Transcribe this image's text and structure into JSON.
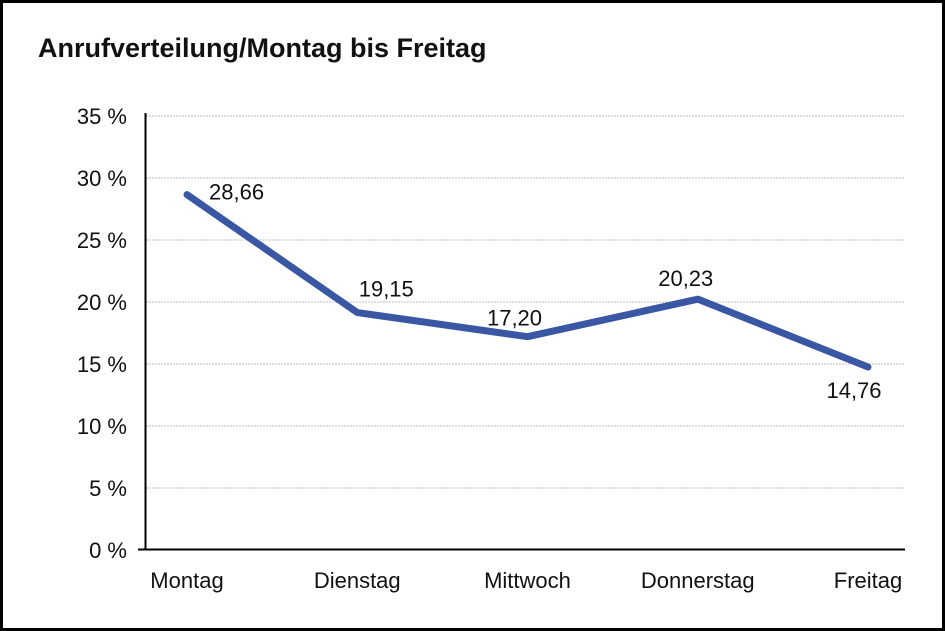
{
  "window": {
    "background": "#FFFFFF",
    "border_color": "#000000"
  },
  "chart_data": {
    "type": "line",
    "title": "Anrufverteilung/Montag bis Freitag",
    "categories": [
      "Montag",
      "Dienstag",
      "Mittwoch",
      "Donnerstag",
      "Freitag"
    ],
    "values": [
      28.66,
      19.15,
      17.2,
      20.23,
      14.76
    ],
    "data_labels": [
      "28,66",
      "19,15",
      "17,20",
      "20,23",
      "14,76"
    ],
    "xlabel": "",
    "ylabel": "",
    "ylim": [
      0,
      35
    ],
    "y_tick_step": 5,
    "y_tick_labels": [
      "0 %",
      "5 %",
      "10 %",
      "15 %",
      "20 %",
      "25 %",
      "30 %",
      "35 %"
    ],
    "grid": "horizontal-dotted",
    "legend": "none",
    "colors": {
      "line": "#3A57A3",
      "grid": "#7F7F7F",
      "axis": "#000000",
      "text": "#111111"
    }
  }
}
